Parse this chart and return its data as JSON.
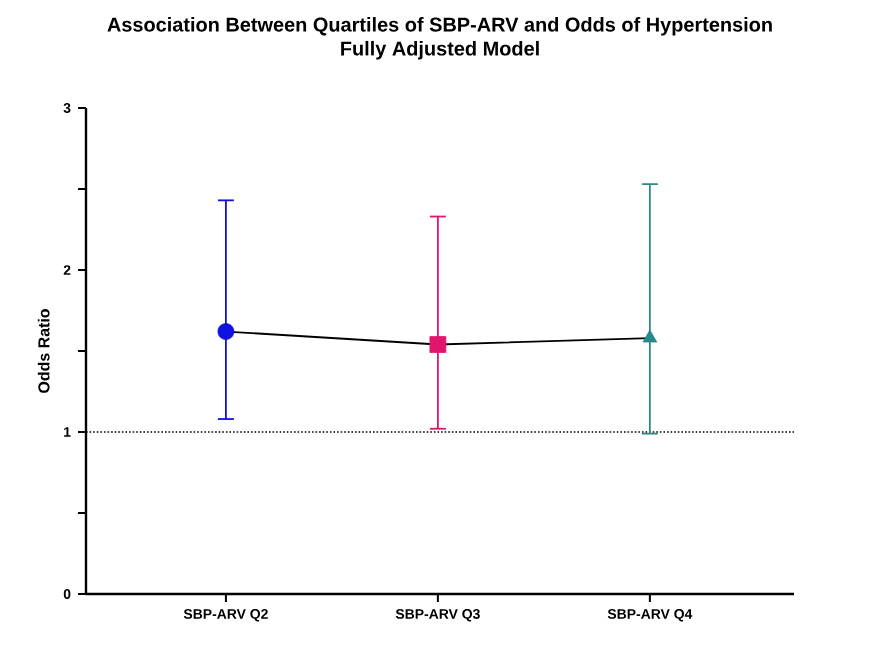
{
  "chart_data": {
    "type": "scatter",
    "title": "Association Between Quartiles of SBP-ARV and Odds of Hypertension",
    "subtitle": "Fully Adjusted Model",
    "ylabel": "Odds Ratio",
    "categories": [
      "SBP-ARV Q2",
      "SBP-ARV Q3",
      "SBP-ARV Q4"
    ],
    "ylim": [
      0,
      3
    ],
    "yticks": [
      0,
      {
        "value": 0.5,
        "label": null
      },
      1,
      {
        "value": 1.5,
        "label": null
      },
      2,
      {
        "value": 2.5,
        "label": null
      },
      3
    ],
    "ref_lines": [
      {
        "axis": "y",
        "value": 1,
        "color": "#000000",
        "line_style": "dotted"
      }
    ],
    "series": [
      {
        "type": "line",
        "color": "#000000",
        "marker": "none",
        "line_style": "solid",
        "values": [
          1.62,
          1.54,
          1.58
        ]
      },
      {
        "color": "#1010e0",
        "marker": "circle",
        "x": [
          "SBP-ARV Q2"
        ],
        "values": [
          1.62
        ],
        "errors": [
          [
            1.08,
            2.43
          ]
        ]
      },
      {
        "color": "#e0156b",
        "marker": "square",
        "x": [
          "SBP-ARV Q3"
        ],
        "values": [
          1.54
        ],
        "errors": [
          [
            1.02,
            2.33
          ]
        ]
      },
      {
        "color": "#2a8a8a",
        "marker": "triangle",
        "x": [
          "SBP-ARV Q4"
        ],
        "values": [
          1.58
        ],
        "errors": [
          [
            0.99,
            2.53
          ]
        ]
      }
    ]
  }
}
